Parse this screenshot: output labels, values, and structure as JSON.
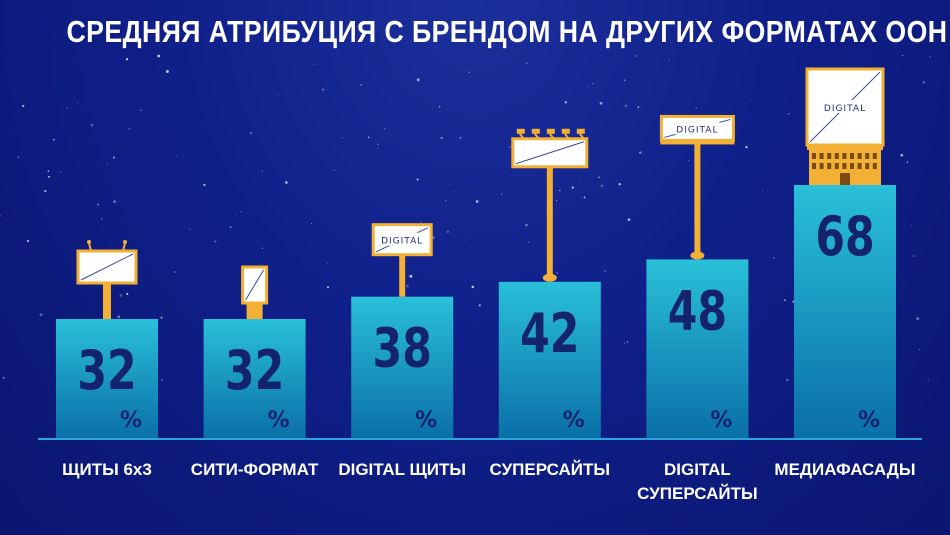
{
  "chart_data": {
    "type": "bar",
    "title": "СРЕДНЯЯ АТРИБУЦИЯ С БРЕНДОМ НА ДРУГИХ ФОРМАТАХ ООН",
    "unit": "%",
    "categories": [
      [
        "ЩИТЫ 6х3"
      ],
      [
        "СИТИ-ФОРМАТ"
      ],
      [
        "DIGITAL ЩИТЫ"
      ],
      [
        "СУПЕРСАЙТЫ"
      ],
      [
        "DIGITAL",
        "СУПЕРСАЙТЫ"
      ],
      [
        "МЕДИАФАСАДЫ"
      ]
    ],
    "values": [
      32,
      32,
      38,
      42,
      48,
      68
    ],
    "icons": [
      "billboard-icon",
      "city-format-icon",
      "digital-billboard-icon",
      "supersite-icon",
      "digital-supersite-icon",
      "media-facade-icon"
    ],
    "icon_label": "DIGITAL",
    "ylim": [
      0,
      68
    ],
    "colors": {
      "bar_top": "#29c0d8",
      "bar_bottom": "#0a6fa8",
      "value_text": "#14236e",
      "frame": "#f2b134",
      "baseline": "#2aa7d6"
    }
  }
}
